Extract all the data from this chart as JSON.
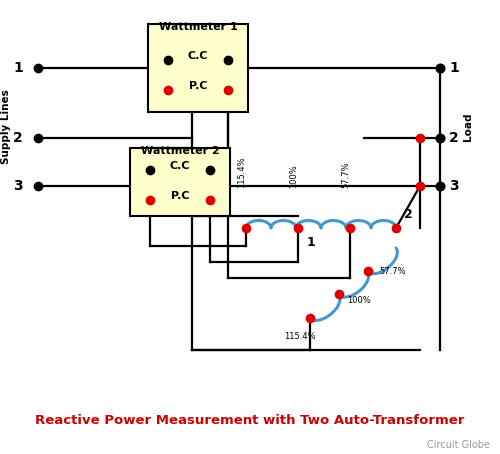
{
  "title": "Reactive Power Measurement with Two Auto-Transformer",
  "subtitle": "Circuit Globe",
  "bg_color": "#ffffff",
  "title_color": "#cc0000",
  "subtitle_color": "#999999",
  "line_color": "#000000",
  "blue_color": "#4499cc",
  "red_dot_color": "#dd0000",
  "box_fill": "#ffffcc",
  "box_edge": "#000000",
  "supply_lines_label": "Supply Lines",
  "load_label": "Load",
  "wm1_label": "Wattmeter 1",
  "wm2_label": "Wattmeter 2",
  "cc_label": "C.C",
  "pc_label": "P.C"
}
